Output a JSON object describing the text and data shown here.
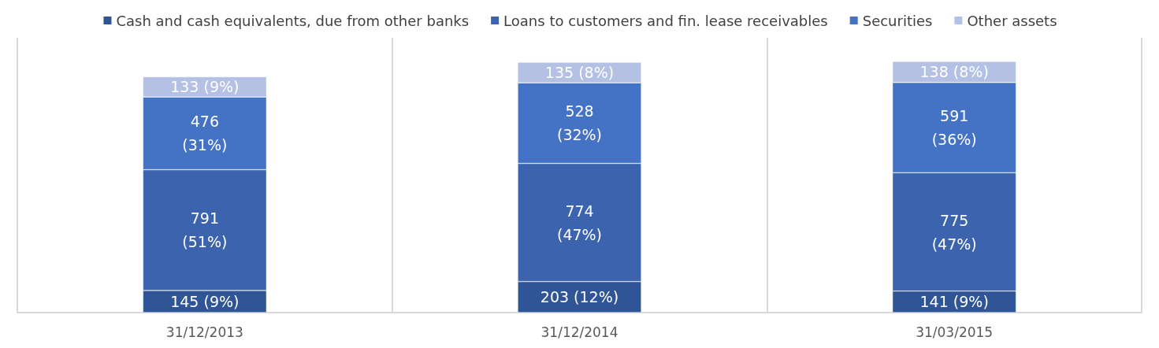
{
  "chart_data": {
    "type": "bar",
    "stacked": true,
    "categories": [
      "31/12/2013",
      "31/12/2014",
      "31/03/2015"
    ],
    "series": [
      {
        "name": "Cash and cash equivalents, due from other banks",
        "color": "#2f5597",
        "values": [
          145,
          203,
          141
        ],
        "value_labels": [
          "145 (9%)",
          "203 (12%)",
          "141 (9%)"
        ]
      },
      {
        "name": "Loans to customers and fin. lease receivables",
        "color": "#3c64ae",
        "values": [
          791,
          774,
          775
        ],
        "value_labels": [
          "791 (51%)",
          "774 (47%)",
          "775 (47%)"
        ]
      },
      {
        "name": "Securities",
        "color": "#4472c4",
        "values": [
          476,
          528,
          591
        ],
        "value_labels": [
          "476 (31%)",
          "528 (32%)",
          "591 (36%)"
        ]
      },
      {
        "name": "Other assets",
        "color": "#b4c0e4",
        "values": [
          133,
          135,
          138
        ],
        "value_labels": [
          "133 (9%)",
          "135 (8%)",
          "138 (8%)"
        ]
      }
    ],
    "grid": "x",
    "legend": "top",
    "tick_labels": "x"
  }
}
